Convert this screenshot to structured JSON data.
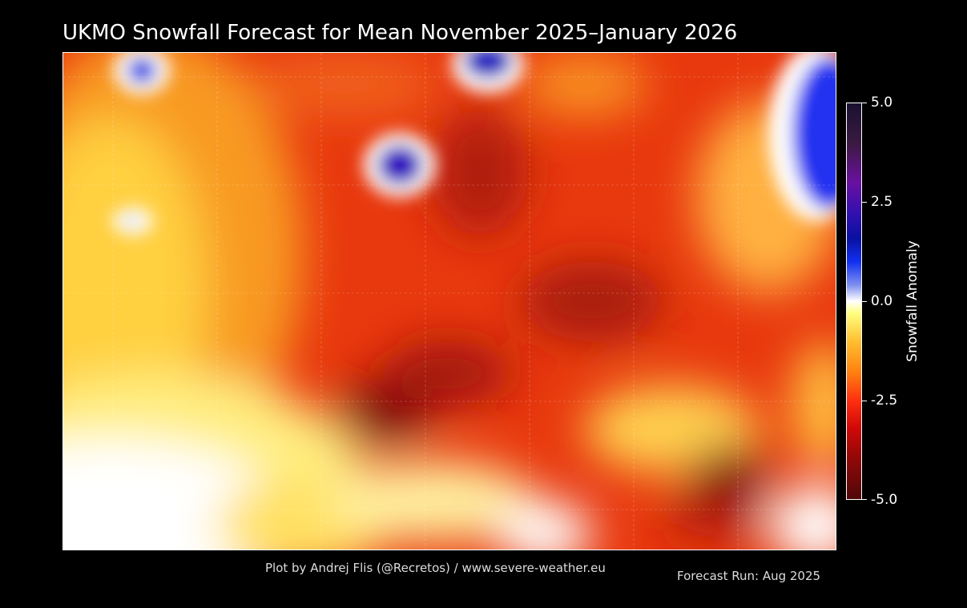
{
  "title": "UKMO Snowfall Forecast for Mean November 2025–January 2026",
  "colorbar": {
    "label": "Snowfall Anomaly",
    "ticks": [
      "5.0",
      "2.5",
      "0.0",
      "-2.5",
      "-5.0"
    ],
    "range": [
      -5.0,
      5.0
    ],
    "colors": {
      "max": "#1a1030",
      "high": "#1030f0",
      "zero": "#ffffff",
      "low": "#ff3010",
      "min": "#500808"
    }
  },
  "footer": {
    "credit": "Plot by Andrej Flis (@Recretos) / www.severe-weather.eu",
    "run": "Forecast Run: Aug 2025"
  }
}
